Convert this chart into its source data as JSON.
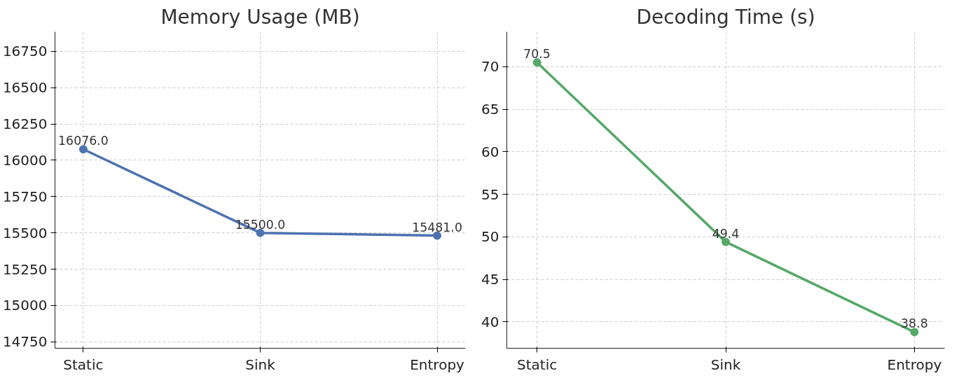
{
  "chart_data": [
    {
      "type": "line",
      "title": "Memory Usage (MB)",
      "categories": [
        "Static",
        "Sink",
        "Entropy"
      ],
      "series": [
        {
          "color": "#4c72b0",
          "values": [
            16076,
            15500,
            15481
          ],
          "value_labels": [
            "16076.0",
            "15500.0",
            "15481.0"
          ]
        }
      ],
      "ylim": [
        14705,
        16885
      ],
      "yticks": [
        14750,
        15000,
        15250,
        15500,
        15750,
        16000,
        16250,
        16500,
        16750
      ],
      "grid": true,
      "marker": "circle",
      "line_style": "solid"
    },
    {
      "type": "line",
      "title": "Decoding Time (s)",
      "categories": [
        "Static",
        "Sink",
        "Entropy"
      ],
      "series": [
        {
          "color": "#55a868",
          "values": [
            70.5,
            49.4,
            38.8
          ]
        }
      ],
      "ylim": [
        36.9,
        74.1
      ],
      "yticks": [
        40,
        45,
        50,
        55,
        60,
        65,
        70
      ],
      "grid": true,
      "marker": "circle",
      "line_style": "solid",
      "data_labels": true
    }
  ]
}
